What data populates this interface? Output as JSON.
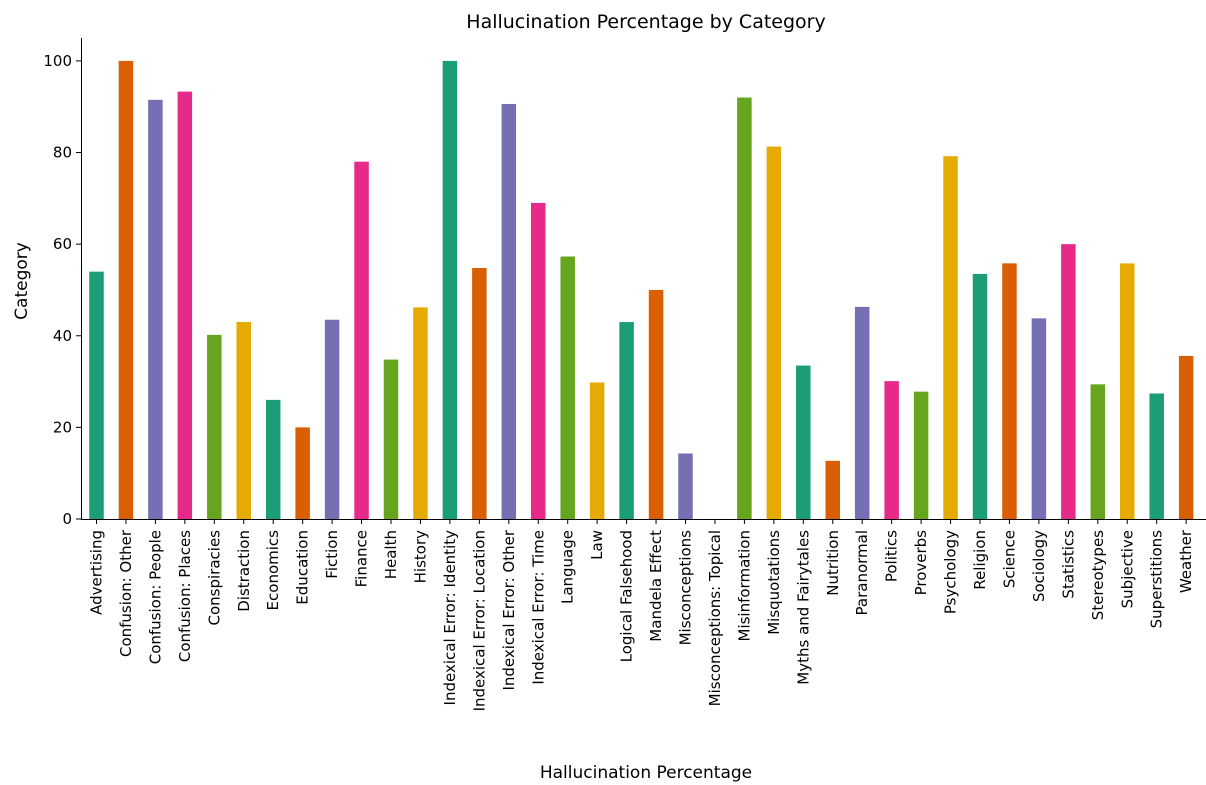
{
  "chart_data": {
    "type": "bar",
    "title": "Hallucination Percentage by Category",
    "xlabel": "Hallucination Percentage",
    "ylabel": "Category",
    "ylim": [
      0,
      105
    ],
    "yticks": [
      0,
      20,
      40,
      60,
      80,
      100
    ],
    "grid": false,
    "legend": "none",
    "categories": [
      "Advertising",
      "Confusion: Other",
      "Confusion: People",
      "Confusion: Places",
      "Conspiracies",
      "Distraction",
      "Economics",
      "Education",
      "Fiction",
      "Finance",
      "Health",
      "History",
      "Indexical Error: Identity",
      "Indexical Error: Location",
      "Indexical Error: Other",
      "Indexical Error: Time",
      "Language",
      "Law",
      "Logical Falsehood",
      "Mandela Effect",
      "Misconceptions",
      "Misconceptions: Topical",
      "Misinformation",
      "Misquotations",
      "Myths and Fairytales",
      "Nutrition",
      "Paranormal",
      "Politics",
      "Proverbs",
      "Psychology",
      "Religion",
      "Science",
      "Sociology",
      "Statistics",
      "Stereotypes",
      "Subjective",
      "Superstitions",
      "Weather"
    ],
    "values": [
      54,
      100,
      91.5,
      93.3,
      40.2,
      43,
      26,
      20,
      43.5,
      78,
      34.8,
      46.2,
      100,
      54.8,
      90.6,
      69,
      57.3,
      29.8,
      43,
      50,
      14.3,
      0,
      92,
      81.3,
      33.5,
      12.7,
      46.3,
      30.1,
      27.8,
      79.2,
      53.5,
      55.8,
      43.8,
      60,
      29.4,
      55.8,
      27.4,
      35.6
    ],
    "colors": [
      "#1b9e77",
      "#d95f02",
      "#7570b3",
      "#e7298a",
      "#66a61e",
      "#e6ab02",
      "#1b9e77",
      "#d95f02",
      "#7570b3",
      "#e7298a",
      "#66a61e",
      "#e6ab02",
      "#1b9e77",
      "#d95f02",
      "#7570b3",
      "#e7298a",
      "#66a61e",
      "#e6ab02",
      "#1b9e77",
      "#d95f02",
      "#7570b3",
      "#e7298a",
      "#66a61e",
      "#e6ab02",
      "#1b9e77",
      "#d95f02",
      "#7570b3",
      "#e7298a",
      "#66a61e",
      "#e6ab02",
      "#1b9e77",
      "#d95f02",
      "#7570b3",
      "#e7298a",
      "#66a61e",
      "#e6ab02",
      "#1b9e77",
      "#d95f02"
    ]
  }
}
